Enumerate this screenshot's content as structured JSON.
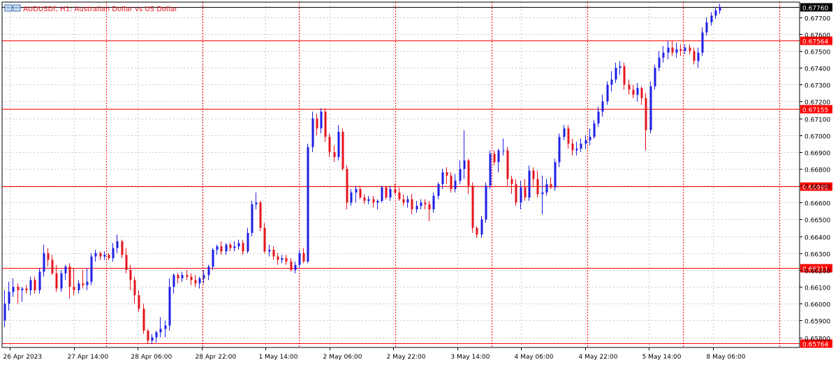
{
  "header": {
    "title": "AUDUSDf, H1:  Australian Dollar vs US Dollar"
  },
  "colors": {
    "bull": "#1e1ee6",
    "bear": "#e6141e",
    "hline": "#ff0000",
    "grid": "#c8c8c8",
    "separator": "#ff0000",
    "axis": "#000000"
  },
  "chart_data": {
    "type": "candlestick",
    "symbol": "AUDUSDf",
    "timeframe": "H1",
    "ylim": [
      0.6574,
      0.6779
    ],
    "y_ticks": [
      "0.67700",
      "0.67600",
      "0.67500",
      "0.67400",
      "0.67300",
      "0.67200",
      "0.67100",
      "0.67000",
      "0.66900",
      "0.66800",
      "0.66700",
      "0.66600",
      "0.66500",
      "0.66400",
      "0.66300",
      "0.66200",
      "0.66100",
      "0.66000",
      "0.65900",
      "0.65800"
    ],
    "x_ticks": [
      "26 Apr 2023",
      "27 Apr 14:00",
      "28 Apr 06:00",
      "28 Apr 22:00",
      "1 May 14:00",
      "2 May 06:00",
      "2 May 22:00",
      "3 May 14:00",
      "4 May 06:00",
      "4 May 22:00",
      "5 May 14:00",
      "8 May 06:00"
    ],
    "horizontal_levels": [
      {
        "value": "0.67760",
        "style": "current"
      },
      {
        "value": "0.67564",
        "style": "level"
      },
      {
        "value": "0.67155",
        "style": "level"
      },
      {
        "value": "0.66698",
        "style": "level"
      },
      {
        "value": "0.66211",
        "style": "level"
      },
      {
        "value": "0.65764",
        "style": "level"
      }
    ],
    "candles": [
      [
        0.659,
        0.6608,
        0.6586,
        0.66
      ],
      [
        0.66,
        0.6613,
        0.6596,
        0.6607
      ],
      [
        0.6607,
        0.6615,
        0.6604,
        0.661
      ],
      [
        0.661,
        0.6612,
        0.66,
        0.6608
      ],
      [
        0.6608,
        0.661,
        0.6601,
        0.6609
      ],
      [
        0.6609,
        0.6611,
        0.6606,
        0.6608
      ],
      [
        0.6608,
        0.6616,
        0.6605,
        0.6614
      ],
      [
        0.6614,
        0.6616,
        0.6606,
        0.6608
      ],
      [
        0.6608,
        0.6621,
        0.6606,
        0.6619
      ],
      [
        0.6619,
        0.6635,
        0.6616,
        0.663
      ],
      [
        0.663,
        0.6633,
        0.6622,
        0.6626
      ],
      [
        0.6626,
        0.6629,
        0.6617,
        0.6618
      ],
      [
        0.6618,
        0.6623,
        0.6607,
        0.6609
      ],
      [
        0.6609,
        0.662,
        0.6607,
        0.6618
      ],
      [
        0.6618,
        0.6623,
        0.6614,
        0.6622
      ],
      [
        0.6622,
        0.6624,
        0.6603,
        0.661
      ],
      [
        0.661,
        0.6621,
        0.6605,
        0.6608
      ],
      [
        0.6608,
        0.6614,
        0.6606,
        0.6612
      ],
      [
        0.6612,
        0.662,
        0.6609,
        0.6611
      ],
      [
        0.6611,
        0.6621,
        0.6608,
        0.6613
      ],
      [
        0.6613,
        0.663,
        0.6611,
        0.6628
      ],
      [
        0.6628,
        0.6632,
        0.6625,
        0.663
      ],
      [
        0.663,
        0.6631,
        0.6626,
        0.6628
      ],
      [
        0.6628,
        0.6631,
        0.6626,
        0.6629
      ],
      [
        0.6629,
        0.663,
        0.6626,
        0.6627
      ],
      [
        0.6627,
        0.6636,
        0.6625,
        0.6633
      ],
      [
        0.6633,
        0.6641,
        0.663,
        0.6637
      ],
      [
        0.6637,
        0.6638,
        0.6627,
        0.6629
      ],
      [
        0.6629,
        0.6633,
        0.6618,
        0.662
      ],
      [
        0.662,
        0.6623,
        0.6608,
        0.6614
      ],
      [
        0.6614,
        0.6616,
        0.66,
        0.6605
      ],
      [
        0.6605,
        0.6608,
        0.6595,
        0.6597
      ],
      [
        0.6597,
        0.66,
        0.6582,
        0.6584
      ],
      [
        0.6584,
        0.6585,
        0.6576,
        0.6578
      ],
      [
        0.6578,
        0.6582,
        0.6576,
        0.658
      ],
      [
        0.658,
        0.6584,
        0.6577,
        0.6583
      ],
      [
        0.6583,
        0.6592,
        0.658,
        0.6585
      ],
      [
        0.6585,
        0.659,
        0.658,
        0.6587
      ],
      [
        0.6587,
        0.6615,
        0.6584,
        0.661
      ],
      [
        0.661,
        0.6618,
        0.6606,
        0.6617
      ],
      [
        0.6617,
        0.6618,
        0.6612,
        0.6615
      ],
      [
        0.6615,
        0.6619,
        0.6613,
        0.6617
      ],
      [
        0.6617,
        0.662,
        0.6614,
        0.6616
      ],
      [
        0.6616,
        0.6618,
        0.6611,
        0.6614
      ],
      [
        0.6614,
        0.6617,
        0.661,
        0.6612
      ],
      [
        0.6612,
        0.6616,
        0.6609,
        0.6615
      ],
      [
        0.6615,
        0.662,
        0.6612,
        0.6617
      ],
      [
        0.6617,
        0.6623,
        0.6614,
        0.6622
      ],
      [
        0.6622,
        0.6633,
        0.662,
        0.6632
      ],
      [
        0.6632,
        0.6635,
        0.6629,
        0.6634
      ],
      [
        0.6634,
        0.6637,
        0.6629,
        0.6631
      ],
      [
        0.6631,
        0.6636,
        0.6629,
        0.6635
      ],
      [
        0.6635,
        0.6636,
        0.6631,
        0.6633
      ],
      [
        0.6633,
        0.6637,
        0.6631,
        0.6634
      ],
      [
        0.6634,
        0.6638,
        0.6632,
        0.6636
      ],
      [
        0.6636,
        0.6638,
        0.6629,
        0.6631
      ],
      [
        0.6631,
        0.6645,
        0.663,
        0.6642
      ],
      [
        0.6642,
        0.6661,
        0.664,
        0.6659
      ],
      [
        0.6659,
        0.6666,
        0.6656,
        0.666
      ],
      [
        0.666,
        0.6661,
        0.6643,
        0.6645
      ],
      [
        0.6645,
        0.6648,
        0.663,
        0.6631
      ],
      [
        0.6631,
        0.6635,
        0.6628,
        0.6632
      ],
      [
        0.6632,
        0.6634,
        0.6626,
        0.6628
      ],
      [
        0.6628,
        0.663,
        0.6623,
        0.6626
      ],
      [
        0.6626,
        0.6629,
        0.6624,
        0.6627
      ],
      [
        0.6627,
        0.6629,
        0.6623,
        0.6625
      ],
      [
        0.6625,
        0.6627,
        0.6619,
        0.662
      ],
      [
        0.662,
        0.6625,
        0.6618,
        0.6623
      ],
      [
        0.6623,
        0.6632,
        0.6621,
        0.663
      ],
      [
        0.663,
        0.6633,
        0.6624,
        0.6625
      ],
      [
        0.6625,
        0.6695,
        0.6624,
        0.6693
      ],
      [
        0.6693,
        0.6714,
        0.669,
        0.671
      ],
      [
        0.671,
        0.6713,
        0.67,
        0.6704
      ],
      [
        0.6704,
        0.6716,
        0.6701,
        0.6714
      ],
      [
        0.6714,
        0.6716,
        0.6696,
        0.6699
      ],
      [
        0.6699,
        0.6701,
        0.6687,
        0.669
      ],
      [
        0.669,
        0.6694,
        0.6684,
        0.6687
      ],
      [
        0.6687,
        0.6706,
        0.6685,
        0.6702
      ],
      [
        0.6702,
        0.6704,
        0.6679,
        0.668
      ],
      [
        0.668,
        0.6682,
        0.6656,
        0.666
      ],
      [
        0.666,
        0.6668,
        0.6658,
        0.6666
      ],
      [
        0.6666,
        0.667,
        0.666,
        0.6668
      ],
      [
        0.6668,
        0.667,
        0.6662,
        0.6663
      ],
      [
        0.6663,
        0.6665,
        0.6659,
        0.6661
      ],
      [
        0.6661,
        0.6664,
        0.6659,
        0.6662
      ],
      [
        0.6662,
        0.6664,
        0.6657,
        0.666
      ],
      [
        0.666,
        0.6662,
        0.6656,
        0.6661
      ],
      [
        0.6661,
        0.667,
        0.666,
        0.6669
      ],
      [
        0.6669,
        0.667,
        0.6662,
        0.6663
      ],
      [
        0.6663,
        0.667,
        0.6661,
        0.6668
      ],
      [
        0.6668,
        0.6671,
        0.6665,
        0.6666
      ],
      [
        0.6666,
        0.6669,
        0.6661,
        0.6662
      ],
      [
        0.6662,
        0.6665,
        0.6658,
        0.666
      ],
      [
        0.666,
        0.6664,
        0.6657,
        0.6662
      ],
      [
        0.6662,
        0.6665,
        0.6653,
        0.6656
      ],
      [
        0.6656,
        0.6661,
        0.6654,
        0.6658
      ],
      [
        0.6658,
        0.6662,
        0.6656,
        0.666
      ],
      [
        0.666,
        0.6662,
        0.6656,
        0.6659
      ],
      [
        0.6659,
        0.6661,
        0.6649,
        0.6656
      ],
      [
        0.6656,
        0.6666,
        0.6654,
        0.6664
      ],
      [
        0.6664,
        0.6672,
        0.6662,
        0.6671
      ],
      [
        0.6671,
        0.668,
        0.6668,
        0.6678
      ],
      [
        0.6678,
        0.6681,
        0.6671,
        0.6676
      ],
      [
        0.6676,
        0.6678,
        0.6666,
        0.6668
      ],
      [
        0.6668,
        0.6677,
        0.6666,
        0.6673
      ],
      [
        0.6673,
        0.6685,
        0.6671,
        0.668
      ],
      [
        0.668,
        0.6703,
        0.6674,
        0.6685
      ],
      [
        0.6685,
        0.6686,
        0.6665,
        0.667
      ],
      [
        0.667,
        0.6672,
        0.6642,
        0.6645
      ],
      [
        0.6645,
        0.6646,
        0.6639,
        0.6641
      ],
      [
        0.6641,
        0.6652,
        0.6639,
        0.665
      ],
      [
        0.665,
        0.6672,
        0.6648,
        0.667
      ],
      [
        0.667,
        0.6691,
        0.6668,
        0.6689
      ],
      [
        0.6689,
        0.6691,
        0.6682,
        0.6684
      ],
      [
        0.6684,
        0.6692,
        0.6678,
        0.6691
      ],
      [
        0.6691,
        0.6698,
        0.6688,
        0.6691
      ],
      [
        0.6691,
        0.6693,
        0.667,
        0.6674
      ],
      [
        0.6674,
        0.6676,
        0.6665,
        0.6671
      ],
      [
        0.6671,
        0.6674,
        0.6658,
        0.666
      ],
      [
        0.666,
        0.6673,
        0.6656,
        0.6669
      ],
      [
        0.6669,
        0.6674,
        0.6661,
        0.6663
      ],
      [
        0.6663,
        0.6682,
        0.6661,
        0.6679
      ],
      [
        0.6679,
        0.6681,
        0.667,
        0.6674
      ],
      [
        0.6674,
        0.6679,
        0.6663,
        0.6665
      ],
      [
        0.6665,
        0.6676,
        0.6653,
        0.6666
      ],
      [
        0.6666,
        0.6674,
        0.6664,
        0.6671
      ],
      [
        0.6671,
        0.6675,
        0.6668,
        0.6669
      ],
      [
        0.6669,
        0.6686,
        0.6667,
        0.6684
      ],
      [
        0.6684,
        0.6701,
        0.6681,
        0.6699
      ],
      [
        0.6699,
        0.6706,
        0.6697,
        0.6704
      ],
      [
        0.6704,
        0.6706,
        0.6692,
        0.6695
      ],
      [
        0.6695,
        0.6698,
        0.6688,
        0.6691
      ],
      [
        0.6691,
        0.6696,
        0.6688,
        0.6692
      ],
      [
        0.6692,
        0.6698,
        0.669,
        0.6695
      ],
      [
        0.6695,
        0.67,
        0.6692,
        0.6697
      ],
      [
        0.6697,
        0.6704,
        0.6694,
        0.6699
      ],
      [
        0.6699,
        0.6709,
        0.6698,
        0.6707
      ],
      [
        0.6707,
        0.6717,
        0.6705,
        0.6714
      ],
      [
        0.6714,
        0.6724,
        0.6711,
        0.672
      ],
      [
        0.672,
        0.6732,
        0.6718,
        0.673
      ],
      [
        0.673,
        0.6738,
        0.6726,
        0.6733
      ],
      [
        0.6733,
        0.6743,
        0.6731,
        0.674
      ],
      [
        0.674,
        0.6744,
        0.6736,
        0.6741
      ],
      [
        0.6741,
        0.6743,
        0.6727,
        0.673
      ],
      [
        0.673,
        0.6733,
        0.6724,
        0.6727
      ],
      [
        0.6727,
        0.673,
        0.6722,
        0.6724
      ],
      [
        0.6724,
        0.6731,
        0.672,
        0.6728
      ],
      [
        0.6728,
        0.6729,
        0.6718,
        0.6722
      ],
      [
        0.6722,
        0.6725,
        0.6691,
        0.6703
      ],
      [
        0.6703,
        0.6732,
        0.6701,
        0.6729
      ],
      [
        0.6729,
        0.6742,
        0.6727,
        0.674
      ],
      [
        0.674,
        0.675,
        0.6738,
        0.6746
      ],
      [
        0.6746,
        0.6753,
        0.6743,
        0.6749
      ],
      [
        0.6749,
        0.6756,
        0.6745,
        0.6752
      ],
      [
        0.6752,
        0.6756,
        0.6747,
        0.6749
      ],
      [
        0.6749,
        0.6755,
        0.6746,
        0.6751
      ],
      [
        0.6751,
        0.6754,
        0.6747,
        0.675
      ],
      [
        0.675,
        0.6754,
        0.6748,
        0.6752
      ],
      [
        0.6752,
        0.6754,
        0.6748,
        0.675
      ],
      [
        0.675,
        0.6752,
        0.6742,
        0.6744
      ],
      [
        0.6744,
        0.6752,
        0.674,
        0.6749
      ],
      [
        0.6749,
        0.6764,
        0.6747,
        0.6761
      ],
      [
        0.6761,
        0.677,
        0.6759,
        0.6767
      ],
      [
        0.6767,
        0.6773,
        0.6765,
        0.6771
      ],
      [
        0.6771,
        0.6776,
        0.6769,
        0.6774
      ],
      [
        0.6774,
        0.6778,
        0.6772,
        0.6776
      ]
    ]
  }
}
